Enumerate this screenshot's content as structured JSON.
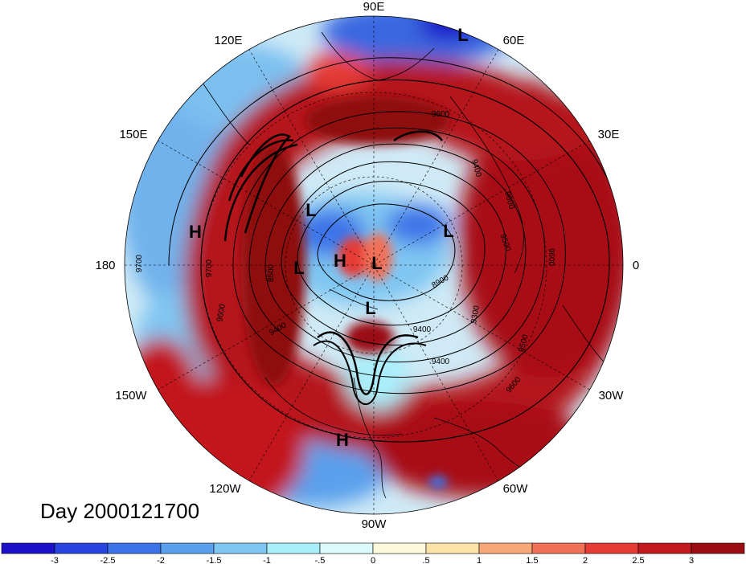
{
  "title": "Day 2000121700",
  "longitude_labels": [
    "90E",
    "60E",
    "30E",
    "0",
    "30W",
    "60W",
    "90W",
    "120W",
    "150W",
    "180",
    "150E",
    "120E"
  ],
  "pressure_systems": [
    "L",
    "H",
    "L",
    "L",
    "H",
    "L",
    "L",
    "L",
    "H"
  ],
  "contour_labels": [
    "9600",
    "9400",
    "9600",
    "9700",
    "9700",
    "9600",
    "9500",
    "9400",
    "8900",
    "9300",
    "9500",
    "9600",
    "9400",
    "9400",
    "8500",
    "9600"
  ],
  "colorbar": {
    "ticks": [
      "-3",
      "-2.5",
      "-2",
      "-1.5",
      "-1",
      "-.5",
      "0",
      ".5",
      "1",
      "1.5",
      "2",
      "2.5",
      "3"
    ],
    "colors": [
      "#1c10c8",
      "#2a44e0",
      "#3d73e8",
      "#5aa0ec",
      "#7fc6f2",
      "#aaeefa",
      "#dcf9fb",
      "#fdf9dc",
      "#fbe2a8",
      "#f6a878",
      "#f17058",
      "#e63a36",
      "#c2181e",
      "#9b0d12"
    ]
  },
  "chart_data": {
    "type": "heatmap",
    "projection": "north polar stereographic",
    "title": "Day 2000121700",
    "longitude_labels": [
      "90E",
      "60E",
      "30E",
      "0",
      "30W",
      "60W",
      "90W",
      "120W",
      "150W",
      "180",
      "150E",
      "120E"
    ],
    "contour_values": [
      8500,
      8900,
      9300,
      9400,
      9500,
      9600,
      9700
    ],
    "shading_levels": [
      -3,
      -2.5,
      -2,
      -1.5,
      -1,
      -0.5,
      0,
      0.5,
      1,
      1.5,
      2,
      2.5,
      3
    ],
    "legend_placement": "bottom"
  }
}
